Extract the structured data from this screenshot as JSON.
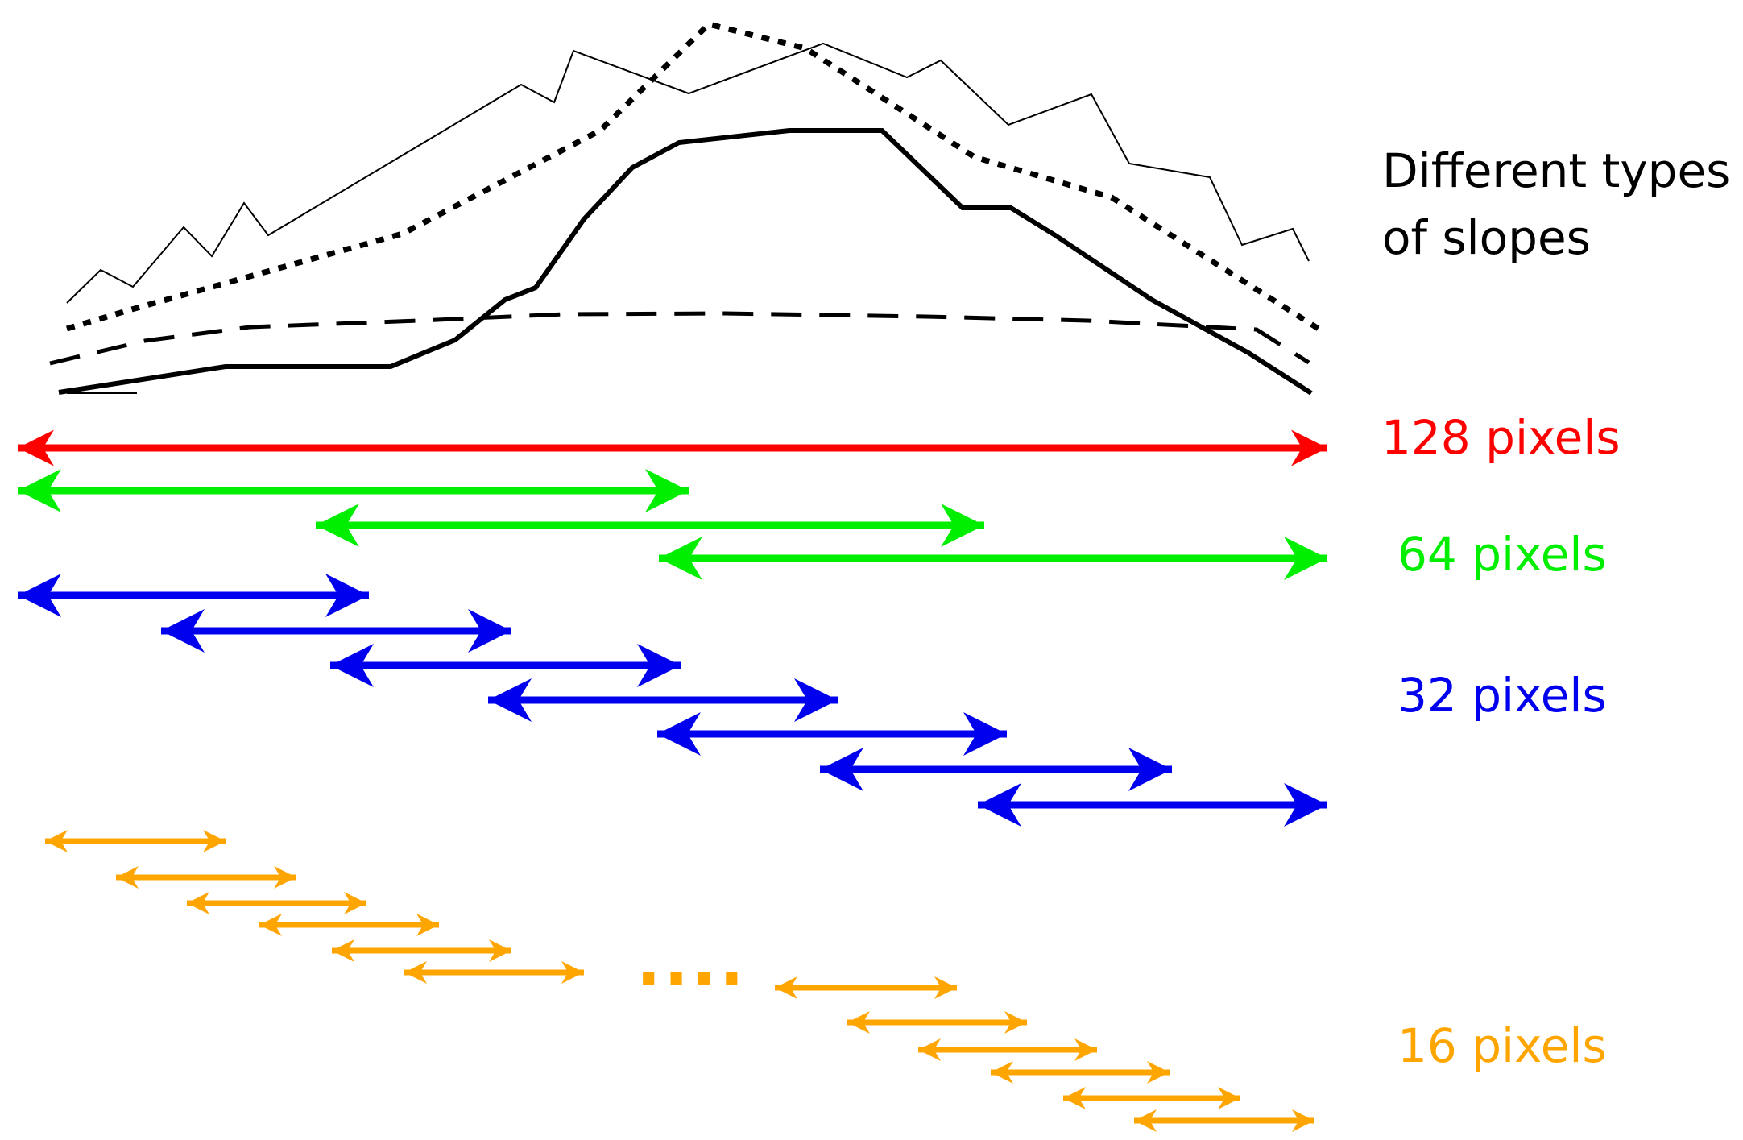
{
  "title_lines": [
    "Different types",
    "of slopes"
  ],
  "curves": [
    {
      "name": "thin-jagged-slope",
      "style": "thin"
    },
    {
      "name": "dotted-slope",
      "style": "dotted"
    },
    {
      "name": "dashed-slope",
      "style": "dashed"
    },
    {
      "name": "solid-slope",
      "style": "solid"
    }
  ],
  "scales": [
    {
      "label": "128 pixels",
      "color": "#ff0000",
      "window_count": 1
    },
    {
      "label": "64 pixels",
      "color": "#00ee00",
      "window_count": 3
    },
    {
      "label": "32 pixels",
      "color": "#0000ee",
      "window_count": 7
    },
    {
      "label": "16 pixels",
      "color": "#ffa500",
      "window_count": 12
    }
  ],
  "ellipsis_text": "....",
  "colors": {
    "curve": "#000000",
    "background": "#ffffff"
  }
}
